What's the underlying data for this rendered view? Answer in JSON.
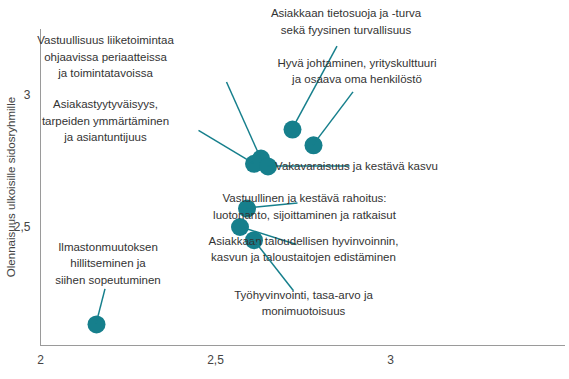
{
  "chart_data": {
    "type": "scatter",
    "y_label": "Olennaisuus ulkoisille sidosryhmille",
    "labels": [
      "Vastuullisuus liiketoimintaa\nohjaavissa periaatteissa\nja toimintatavoissa",
      "Asiakkaan tietosuoja ja -turva\nsekä fyysinen turvallisuus",
      "Hyvä johtaminen, yrityskulttuuri\nja osaava oma henkilöstö",
      "Asiakastyytyväisyys,\ntarpeiden ymmärtäminen\nja asiantuntijuus",
      "Vakavaraisuus ja kestävä kasvu",
      "Vastuullinen ja kestävä rahoitus:\nluotonanto, sijoittaminen ja ratkaisut",
      "Asiakkaan taloudellisen hyvinvoinnin,\nkasvun ja taloustaitojen edistäminen",
      "Työhyvinvointi, tasa-arvo ja\nmonimuotoisuus",
      "Ilmastonmuutoksen\nhillitseminen ja\nsiihen sopeutuminen"
    ],
    "x": [
      2.63,
      2.72,
      2.78,
      2.61,
      2.65,
      2.59,
      2.57,
      2.61,
      2.16
    ],
    "y": [
      2.76,
      2.87,
      2.81,
      2.74,
      2.73,
      2.57,
      2.5,
      2.45,
      2.13
    ],
    "xlim": [
      2,
      3.5
    ],
    "ylim": [
      2.05,
      3.25
    ],
    "xticks": [
      2,
      {
        "value": 2.5,
        "label": "2,5"
      },
      3
    ],
    "yticks": [
      {
        "value": 2.5,
        "label": "2,5"
      },
      3
    ],
    "color": "#167f8c",
    "marker": "circle",
    "grid": false
  }
}
